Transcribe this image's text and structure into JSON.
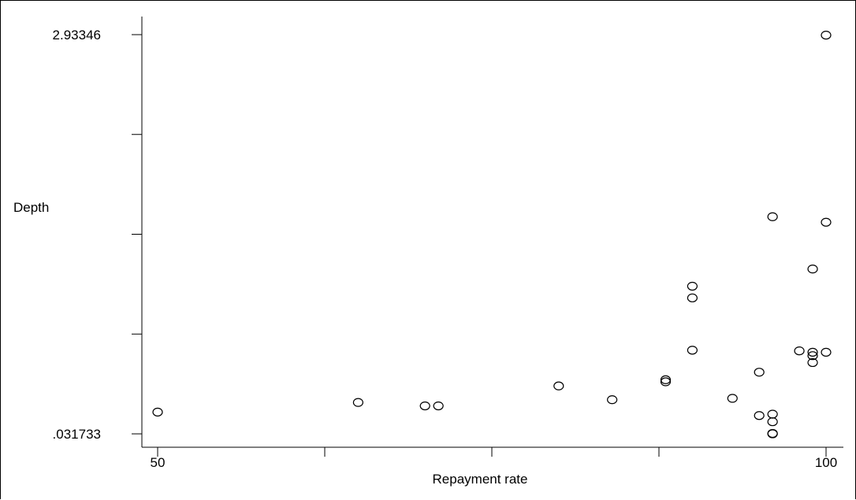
{
  "chart_data": {
    "type": "scatter",
    "title": "",
    "xlabel": "Repayment rate",
    "ylabel": "Depth",
    "xlim": [
      50,
      100
    ],
    "ylim": [
      0.031733,
      2.93346
    ],
    "x_ticks": [
      50,
      62.5,
      75,
      87.5,
      100
    ],
    "x_tick_labels": [
      "50",
      "",
      "",
      "",
      "100"
    ],
    "y_ticks": [
      0.031733,
      0.757165,
      1.482597,
      2.208028,
      2.93346
    ],
    "y_tick_labels": [
      ".031733",
      "",
      "",
      "",
      "2.93346"
    ],
    "grid": false,
    "legend": "none",
    "series": [
      {
        "points": [
          {
            "x": 50.0,
            "y": 0.19
          },
          {
            "x": 65.0,
            "y": 0.26
          },
          {
            "x": 70.0,
            "y": 0.235
          },
          {
            "x": 71.0,
            "y": 0.235
          },
          {
            "x": 80.0,
            "y": 0.38
          },
          {
            "x": 84.0,
            "y": 0.28
          },
          {
            "x": 88.0,
            "y": 0.41
          },
          {
            "x": 88.0,
            "y": 0.425
          },
          {
            "x": 90.0,
            "y": 0.64
          },
          {
            "x": 90.0,
            "y": 1.02
          },
          {
            "x": 90.0,
            "y": 1.105
          },
          {
            "x": 93.0,
            "y": 0.29
          },
          {
            "x": 95.0,
            "y": 0.48
          },
          {
            "x": 95.0,
            "y": 0.165
          },
          {
            "x": 96.0,
            "y": 1.61
          },
          {
            "x": 96.0,
            "y": 0.175
          },
          {
            "x": 96.0,
            "y": 0.12
          },
          {
            "x": 96.0,
            "y": 0.035
          },
          {
            "x": 96.0,
            "y": 0.032
          },
          {
            "x": 98.0,
            "y": 0.635
          },
          {
            "x": 99.0,
            "y": 1.23
          },
          {
            "x": 99.0,
            "y": 0.625
          },
          {
            "x": 99.0,
            "y": 0.6
          },
          {
            "x": 99.0,
            "y": 0.55
          },
          {
            "x": 100.0,
            "y": 2.93
          },
          {
            "x": 100.0,
            "y": 1.57
          },
          {
            "x": 100.0,
            "y": 0.625
          }
        ]
      }
    ]
  }
}
